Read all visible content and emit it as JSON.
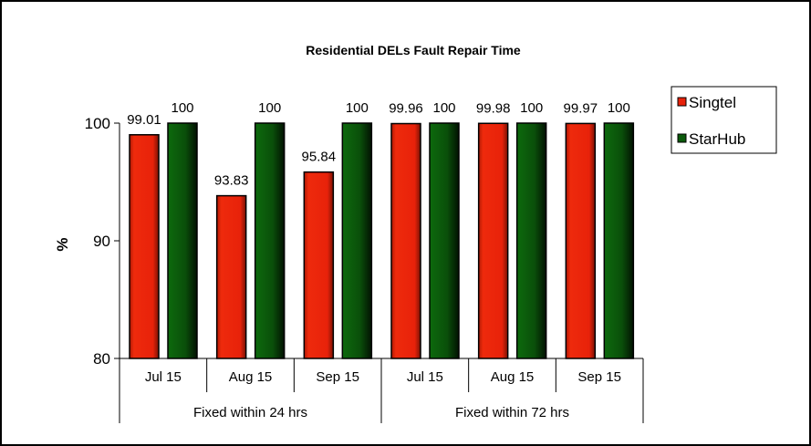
{
  "chart_data": {
    "type": "bar",
    "title": "Residential DELs Fault Repair Time",
    "ylabel": "%",
    "xlabel": "",
    "ylim": [
      80,
      100
    ],
    "yticks": [
      80,
      90,
      100
    ],
    "categories": [
      "Jul 15",
      "Aug 15",
      "Sep 15",
      "Jul 15",
      "Aug 15",
      "Sep 15"
    ],
    "groups": [
      {
        "label": "Fixed within 24 hrs",
        "span": 3
      },
      {
        "label": "Fixed within 72 hrs",
        "span": 3
      }
    ],
    "series": [
      {
        "name": "Singtel",
        "color": "#e8220a",
        "values": [
          99.01,
          93.83,
          95.84,
          99.96,
          99.98,
          99.97
        ],
        "labels": [
          "99.01",
          "93.83",
          "95.84",
          "99.96",
          "99.98",
          "99.97"
        ]
      },
      {
        "name": "StarHub",
        "color": "#0b5a0b",
        "values": [
          100,
          100,
          100,
          100,
          100,
          100
        ],
        "labels": [
          "100",
          "100",
          "100",
          "100",
          "100",
          "100"
        ]
      }
    ],
    "legend": "right",
    "grid": false
  }
}
